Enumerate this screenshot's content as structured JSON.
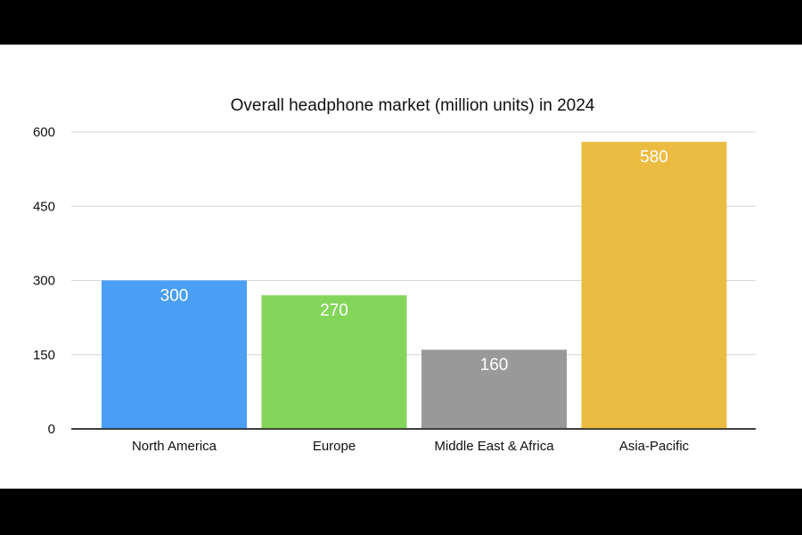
{
  "chart_data": {
    "type": "bar",
    "title": "Overall headphone market (million units) in 2024",
    "categories": [
      "North America",
      "Europe",
      "Middle East & Africa",
      "Asia-Pacific"
    ],
    "values": [
      300,
      270,
      160,
      580
    ],
    "data_labels": [
      "300",
      "270",
      "160",
      "580"
    ],
    "colors": [
      "#4a9ff5",
      "#84d65a",
      "#999999",
      "#ecbc42"
    ],
    "ylim": [
      0,
      600
    ],
    "yticks": [
      0,
      150,
      300,
      450,
      600
    ],
    "ytick_labels": [
      "0",
      "150",
      "300",
      "450",
      "600"
    ],
    "grid": true,
    "xlabel": "",
    "ylabel": ""
  }
}
